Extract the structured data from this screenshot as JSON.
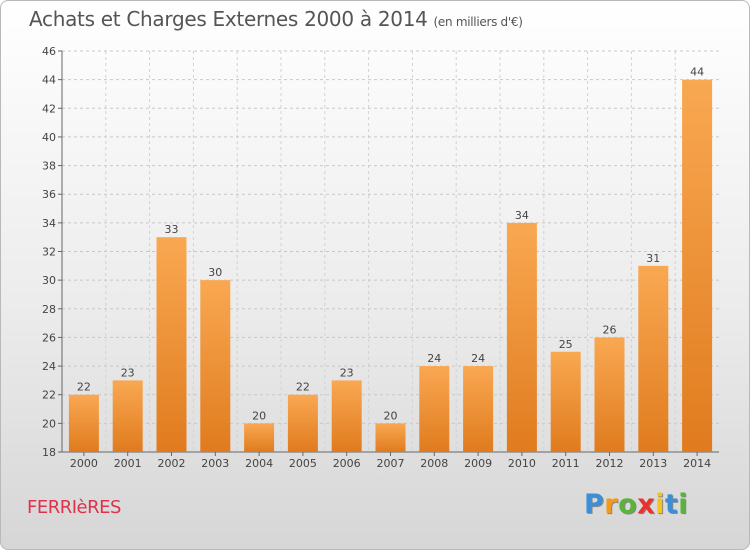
{
  "header": {
    "title": "Achats et Charges Externes 2000 à 2014",
    "unit": "(en milliers d'€)"
  },
  "footer": {
    "commune": "FERRIèRES",
    "logo_letters": [
      "P",
      "r",
      "o",
      "x",
      "i",
      "t",
      "i"
    ]
  },
  "colors": {
    "bar_light": "#f9a852",
    "bar_dark": "#e07b1e",
    "commune": "#e0314b",
    "logo": [
      "#3a8fd6",
      "#f29a1b",
      "#5cb33b",
      "#e8322b",
      "#f4c31c",
      "#3a8fd6",
      "#5cb33b"
    ]
  },
  "chart_data": {
    "type": "bar",
    "title": "Achats et Charges Externes 2000 à 2014",
    "xlabel": "",
    "ylabel": "",
    "categories": [
      "2000",
      "2001",
      "2002",
      "2003",
      "2004",
      "2005",
      "2006",
      "2007",
      "2008",
      "2009",
      "2010",
      "2011",
      "2012",
      "2013",
      "2014"
    ],
    "values": [
      22,
      23,
      33,
      30,
      20,
      22,
      23,
      20,
      24,
      24,
      34,
      25,
      26,
      31,
      44
    ],
    "ylim": [
      18,
      46
    ],
    "yticks": [
      18,
      20,
      22,
      24,
      26,
      28,
      30,
      32,
      34,
      36,
      38,
      40,
      42,
      44,
      46
    ],
    "grid": true
  }
}
